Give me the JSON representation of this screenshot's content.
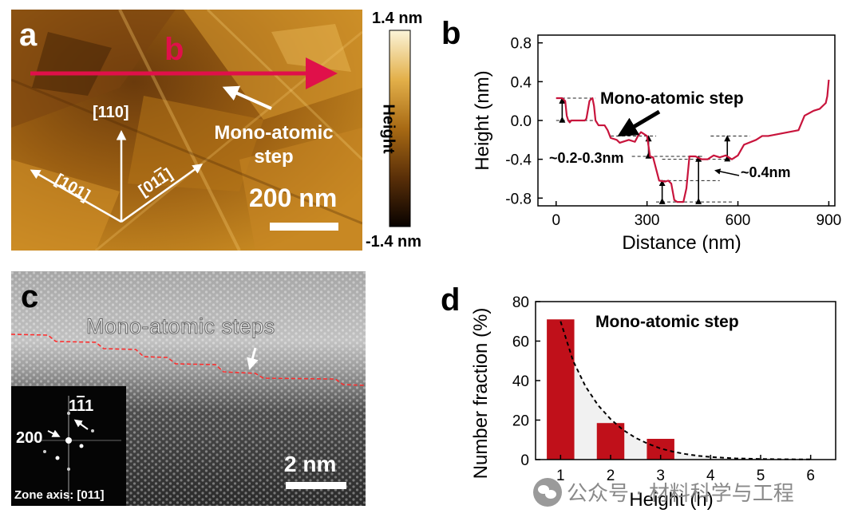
{
  "panel_a": {
    "letter": "a",
    "arrow_letter": "b",
    "colorbar_max": "1.4 nm",
    "colorbar_min": "-1.4 nm",
    "colorbar_label": "Height",
    "scale_bar": "200 nm",
    "annotation_line1": "Mono-atomic",
    "annotation_line2": "step",
    "direction_110": "[110]",
    "direction_101": "[101]",
    "direction_011": "[01",
    "direction_011_bar": "1",
    "direction_011_close": "]"
  },
  "panel_c": {
    "letter": "c",
    "label": "Mono-atomic steps",
    "scale_bar": "2 nm",
    "fft_label_111_pre": "1",
    "fft_label_111_bar": "1",
    "fft_label_111_post": "1",
    "fft_label_200": "200",
    "zone_axis": "Zone axis: [011]"
  },
  "chart_b": {
    "letter": "b",
    "annotation_step": "Mono-atomic step",
    "annotation_02": "~0.2-0.3nm",
    "annotation_04": "~0.4nm"
  },
  "chart_d": {
    "letter": "d",
    "annotation": "Mono-atomic step"
  },
  "watermark": "公众号 · 材料科学与工程",
  "chart_data": [
    {
      "type": "line",
      "xlabel": "Distance (nm)",
      "ylabel": "Height (nm)",
      "xlim": [
        -60,
        920
      ],
      "ylim": [
        -0.88,
        0.88
      ],
      "xticks": [
        0,
        300,
        600,
        900
      ],
      "yticks": [
        0.8,
        0.4,
        0.0,
        -0.4,
        -0.8
      ],
      "xtick_labels": [
        "0",
        "300",
        "600",
        "900"
      ],
      "ytick_labels": [
        "0.8",
        "0.4",
        "0.0",
        "-0.4",
        "-0.8"
      ],
      "color": "#c8143c",
      "series": [
        {
          "x": [
            0,
            20,
            30,
            35,
            40,
            45,
            50,
            70,
            95,
            100,
            110,
            115,
            120,
            125,
            130,
            140,
            160,
            170,
            180,
            200,
            210,
            240,
            260,
            270,
            280,
            300,
            310,
            320,
            340,
            360,
            370,
            380,
            390,
            400,
            420,
            430,
            440,
            460,
            480,
            500,
            520,
            540,
            560,
            580,
            600,
            620,
            660,
            680,
            700,
            750,
            800,
            820,
            850,
            870,
            880,
            890,
            895,
            900
          ],
          "y": [
            0.23,
            0.23,
            0.2,
            0.05,
            0.0,
            -0.02,
            0.0,
            0.0,
            0.0,
            0.02,
            0.2,
            0.22,
            0.23,
            0.15,
            0.0,
            -0.05,
            -0.05,
            -0.1,
            -0.18,
            -0.2,
            -0.23,
            -0.2,
            -0.22,
            -0.16,
            -0.12,
            -0.16,
            -0.37,
            -0.38,
            -0.62,
            -0.63,
            -0.62,
            -0.65,
            -0.82,
            -0.84,
            -0.84,
            -0.7,
            -0.37,
            -0.37,
            -0.4,
            -0.4,
            -0.36,
            -0.38,
            -0.36,
            -0.4,
            -0.36,
            -0.25,
            -0.2,
            -0.16,
            -0.16,
            -0.13,
            -0.1,
            0.05,
            0.1,
            0.12,
            0.15,
            0.18,
            0.25,
            0.42
          ]
        }
      ]
    },
    {
      "type": "bar",
      "xlabel": "Height (h)",
      "ylabel": "Number fraction (%)",
      "xlim": [
        0.5,
        6.5
      ],
      "ylim": [
        0,
        80
      ],
      "xticks": [
        1,
        2,
        3,
        4,
        5,
        6
      ],
      "yticks": [
        0,
        20,
        40,
        60,
        80
      ],
      "xtick_labels": [
        "1",
        "2",
        "3",
        "4",
        "5",
        "6"
      ],
      "ytick_labels": [
        "0",
        "20",
        "40",
        "60",
        "80"
      ],
      "categories": [
        1,
        2,
        3
      ],
      "values": [
        71,
        18.5,
        10.5
      ],
      "color": "#c0101a",
      "fit_x": [
        1,
        1.25,
        1.5,
        1.75,
        2,
        2.25,
        2.5,
        2.75,
        3,
        3.25,
        3.5,
        3.75,
        4,
        4.5,
        5,
        5.5,
        6
      ],
      "fit_y": [
        70,
        50,
        37,
        27.5,
        20.5,
        15,
        11,
        8,
        5.6,
        4,
        2.8,
        1.9,
        1.3,
        0.6,
        0.3,
        0.15,
        0.08
      ]
    }
  ]
}
